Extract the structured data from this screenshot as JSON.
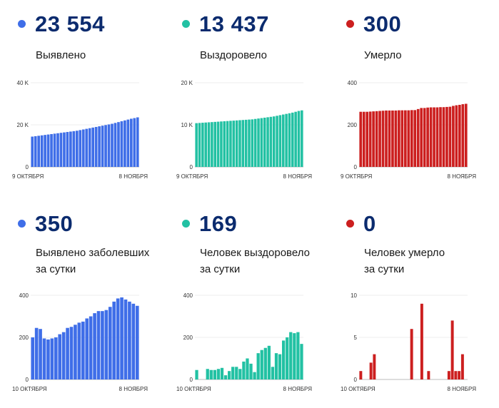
{
  "charts": [
    {
      "id": "c0",
      "number": "23 554",
      "caption": [
        "Выявлено"
      ],
      "color": "#3f6ee8",
      "chart_data": {
        "type": "bar",
        "ylim": [
          0,
          40000
        ],
        "yticks": [
          {
            "v": 0,
            "t": "0"
          },
          {
            "v": 20000,
            "t": "20 K"
          },
          {
            "v": 40000,
            "t": "40 K"
          }
        ],
        "xlabels": [
          "9 ОКТЯБРЯ",
          "8 НОЯБРЯ"
        ],
        "values": [
          14400,
          14600,
          14800,
          15000,
          15200,
          15400,
          15600,
          15800,
          16000,
          16200,
          16400,
          16600,
          16800,
          17000,
          17200,
          17500,
          17800,
          18100,
          18400,
          18700,
          19000,
          19300,
          19600,
          19900,
          20200,
          20500,
          20900,
          21300,
          21700,
          22100,
          22500,
          22900,
          23200,
          23554
        ]
      }
    },
    {
      "id": "c1",
      "number": "13 437",
      "caption": [
        "Выздоровело"
      ],
      "color": "#22c1a3",
      "chart_data": {
        "type": "bar",
        "ylim": [
          0,
          20000
        ],
        "yticks": [
          {
            "v": 0,
            "t": "0"
          },
          {
            "v": 10000,
            "t": "10 K"
          },
          {
            "v": 20000,
            "t": "20 K"
          }
        ],
        "xlabels": [
          "9 ОКТЯБРЯ",
          "8 НОЯБРЯ"
        ],
        "values": [
          10400,
          10450,
          10500,
          10550,
          10600,
          10650,
          10700,
          10750,
          10800,
          10850,
          10900,
          10950,
          11000,
          11050,
          11100,
          11150,
          11200,
          11250,
          11300,
          11400,
          11500,
          11600,
          11700,
          11800,
          11900,
          12000,
          12150,
          12300,
          12450,
          12600,
          12750,
          12900,
          13100,
          13300,
          13437
        ]
      }
    },
    {
      "id": "c2",
      "number": "300",
      "caption": [
        "Умерло"
      ],
      "color": "#cc1f1f",
      "chart_data": {
        "type": "bar",
        "ylim": [
          0,
          400
        ],
        "yticks": [
          {
            "v": 0,
            "t": "0"
          },
          {
            "v": 200,
            "t": "200"
          },
          {
            "v": 400,
            "t": "400"
          }
        ],
        "xlabels": [
          "9 ОКТЯБРЯ",
          "8 НОЯБРЯ"
        ],
        "values": [
          262,
          262,
          262,
          263,
          264,
          265,
          266,
          267,
          268,
          268,
          268,
          268,
          269,
          269,
          269,
          269,
          270,
          270,
          275,
          280,
          280,
          282,
          283,
          283,
          283,
          284,
          284,
          285,
          286,
          290,
          293,
          295,
          298,
          300
        ]
      }
    },
    {
      "id": "c3",
      "number": "350",
      "caption": [
        "Выявлено заболевших",
        "за сутки"
      ],
      "color": "#3f6ee8",
      "chart_data": {
        "type": "bar",
        "ylim": [
          0,
          400
        ],
        "yticks": [
          {
            "v": 0,
            "t": "0"
          },
          {
            "v": 200,
            "t": "200"
          },
          {
            "v": 400,
            "t": "400"
          }
        ],
        "xlabels": [
          "10 ОКТЯБРЯ",
          "8 НОЯБРЯ"
        ],
        "values": [
          200,
          245,
          240,
          195,
          190,
          195,
          200,
          215,
          225,
          245,
          250,
          260,
          270,
          275,
          290,
          300,
          315,
          325,
          325,
          330,
          345,
          370,
          385,
          390,
          380,
          370,
          360,
          350
        ]
      }
    },
    {
      "id": "c4",
      "number": "169",
      "caption": [
        "Человек выздоровело",
        "за сутки"
      ],
      "color": "#22c1a3",
      "chart_data": {
        "type": "bar",
        "ylim": [
          0,
          400
        ],
        "yticks": [
          {
            "v": 0,
            "t": "0"
          },
          {
            "v": 200,
            "t": "200"
          },
          {
            "v": 400,
            "t": "400"
          }
        ],
        "xlabels": [
          "10 ОКТЯБРЯ",
          "8 НОЯБРЯ"
        ],
        "values": [
          45,
          0,
          0,
          50,
          45,
          45,
          50,
          55,
          20,
          40,
          60,
          60,
          50,
          85,
          100,
          75,
          35,
          125,
          140,
          150,
          160,
          60,
          125,
          120,
          185,
          200,
          225,
          220,
          225,
          169
        ]
      }
    },
    {
      "id": "c5",
      "number": "0",
      "caption": [
        "Человек умерло",
        "за сутки"
      ],
      "color": "#cc1f1f",
      "chart_data": {
        "type": "bar",
        "ylim": [
          0,
          10
        ],
        "yticks": [
          {
            "v": 0,
            "t": "0"
          },
          {
            "v": 5,
            "t": "5"
          },
          {
            "v": 10,
            "t": "10"
          }
        ],
        "xlabels": [
          "10 ОКТЯБРЯ",
          "8 НОЯБРЯ"
        ],
        "values": [
          1,
          0,
          0,
          2,
          3,
          0,
          0,
          0,
          0,
          0,
          0,
          0,
          0,
          0,
          0,
          6,
          0,
          0,
          9,
          0,
          1,
          0,
          0,
          0,
          0,
          0,
          1,
          7,
          1,
          1,
          3,
          0
        ]
      }
    }
  ]
}
